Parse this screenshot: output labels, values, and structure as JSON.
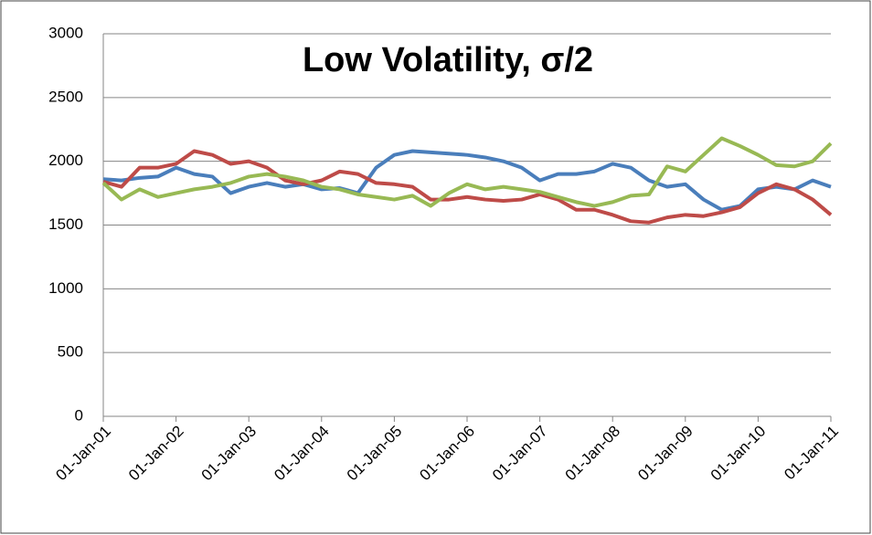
{
  "chart_data": {
    "type": "line",
    "title": "Low Volatility, σ/2",
    "x": [
      2001,
      2001.25,
      2001.5,
      2001.75,
      2002,
      2002.25,
      2002.5,
      2002.75,
      2003,
      2003.25,
      2003.5,
      2003.75,
      2004,
      2004.25,
      2004.5,
      2004.75,
      2005,
      2005.25,
      2005.5,
      2005.75,
      2006,
      2006.25,
      2006.5,
      2006.75,
      2007,
      2007.25,
      2007.5,
      2007.75,
      2008,
      2008.25,
      2008.5,
      2008.75,
      2009,
      2009.25,
      2009.5,
      2009.75,
      2010,
      2010.25,
      2010.5,
      2010.75,
      2011
    ],
    "series": [
      {
        "color": "#4a7ebb",
        "values": [
          1860,
          1850,
          1870,
          1880,
          1950,
          1900,
          1880,
          1750,
          1800,
          1830,
          1800,
          1820,
          1780,
          1790,
          1750,
          1950,
          2050,
          2080,
          2070,
          2060,
          2050,
          2030,
          2000,
          1950,
          1850,
          1900,
          1900,
          1920,
          1980,
          1950,
          1850,
          1800,
          1820,
          1700,
          1620,
          1650,
          1780,
          1800,
          1780,
          1850,
          1800
        ]
      },
      {
        "color": "#be4b48",
        "values": [
          1840,
          1800,
          1950,
          1950,
          1980,
          2080,
          2050,
          1980,
          2000,
          1950,
          1850,
          1820,
          1850,
          1920,
          1900,
          1830,
          1820,
          1800,
          1700,
          1700,
          1720,
          1700,
          1690,
          1700,
          1740,
          1700,
          1620,
          1620,
          1580,
          1530,
          1520,
          1560,
          1580,
          1570,
          1600,
          1640,
          1750,
          1820,
          1780,
          1700,
          1580
        ]
      },
      {
        "color": "#98b954",
        "values": [
          1830,
          1700,
          1780,
          1720,
          1750,
          1780,
          1800,
          1830,
          1880,
          1900,
          1880,
          1850,
          1800,
          1780,
          1740,
          1720,
          1700,
          1730,
          1650,
          1750,
          1820,
          1780,
          1800,
          1780,
          1760,
          1720,
          1680,
          1650,
          1680,
          1730,
          1740,
          1960,
          1920,
          2050,
          2180,
          2120,
          2050,
          1970,
          1960,
          2000,
          2140
        ]
      }
    ],
    "xlim": [
      2001,
      2011
    ],
    "xticks": [
      {
        "value": 2001,
        "label": "01-Jan-01"
      },
      {
        "value": 2002,
        "label": "01-Jan-02"
      },
      {
        "value": 2003,
        "label": "01-Jan-03"
      },
      {
        "value": 2004,
        "label": "01-Jan-04"
      },
      {
        "value": 2005,
        "label": "01-Jan-05"
      },
      {
        "value": 2006,
        "label": "01-Jan-06"
      },
      {
        "value": 2007,
        "label": "01-Jan-07"
      },
      {
        "value": 2008,
        "label": "01-Jan-08"
      },
      {
        "value": 2009,
        "label": "01-Jan-09"
      },
      {
        "value": 2010,
        "label": "01-Jan-10"
      },
      {
        "value": 2011,
        "label": "01-Jan-11"
      }
    ],
    "ylim": [
      0,
      3000
    ],
    "yticks": [
      0,
      500,
      1000,
      1500,
      2000,
      2500,
      3000
    ],
    "grid": true
  }
}
